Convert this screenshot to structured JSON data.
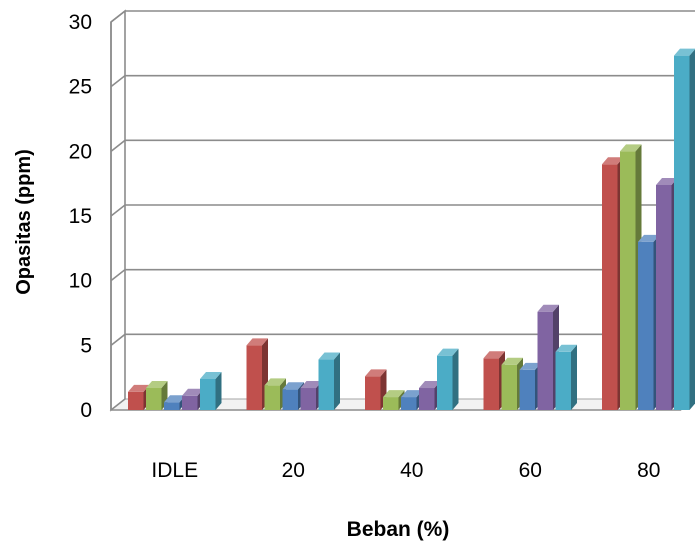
{
  "chart_data": {
    "type": "bar",
    "title": "",
    "xlabel": "Beban (%)",
    "ylabel": "Opasitas (ppm)",
    "categories": [
      "IDLE",
      "20",
      "40",
      "60",
      "80"
    ],
    "ylim": [
      0,
      30
    ],
    "yticks": [
      "0",
      "5",
      "10",
      "15",
      "20",
      "25",
      "30"
    ],
    "grid": true,
    "legend": "none",
    "series": [
      {
        "color": "#C0504D",
        "values": [
          1.4,
          5.0,
          2.6,
          4.0,
          19.0
        ]
      },
      {
        "color": "#9BBB59",
        "values": [
          1.7,
          1.9,
          1.0,
          3.5,
          20.0
        ]
      },
      {
        "color": "#4F81BD",
        "values": [
          0.6,
          1.6,
          1.0,
          3.1,
          13.0
        ]
      },
      {
        "color": "#8064A2",
        "values": [
          1.1,
          1.7,
          1.7,
          7.6,
          17.4
        ]
      },
      {
        "color": "#4BACC6",
        "values": [
          2.4,
          3.9,
          4.2,
          4.5,
          27.4
        ]
      }
    ]
  }
}
